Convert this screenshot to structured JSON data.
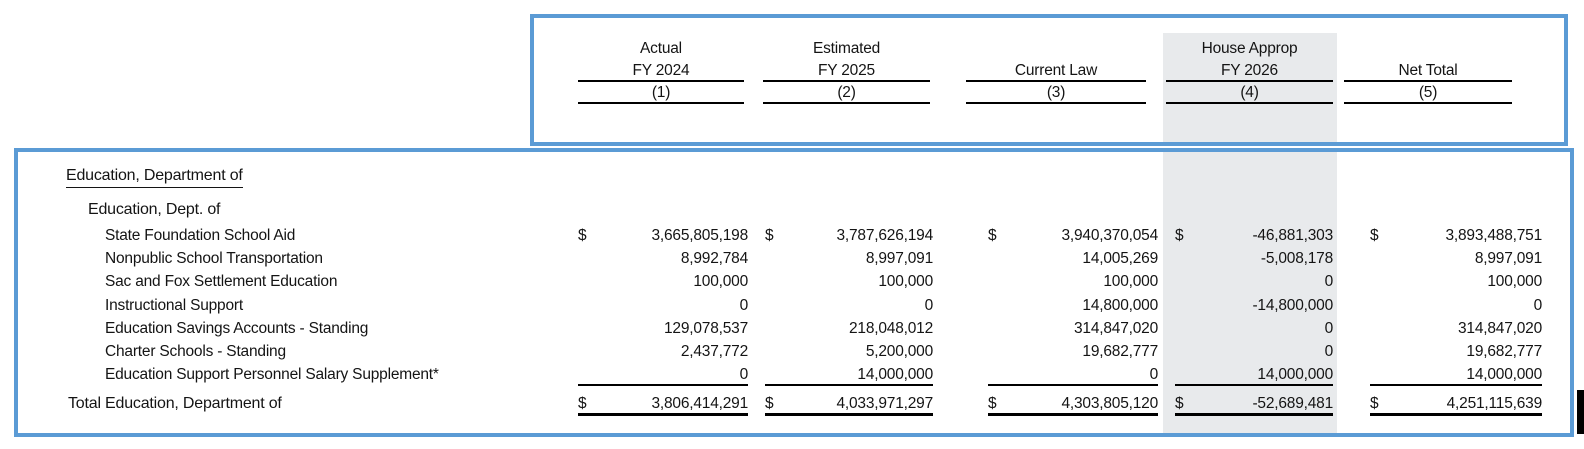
{
  "colors": {
    "box_border": "#5B9BD5",
    "highlight_band": "#E8EAEC",
    "rule": "#000000",
    "text": "#141414"
  },
  "header": {
    "columns": [
      {
        "line1": "Actual",
        "line2": "FY 2024",
        "number": "(1)"
      },
      {
        "line1": "Estimated",
        "line2": "FY 2025",
        "number": "(2)"
      },
      {
        "line1": "",
        "line2": "Current Law",
        "number": "(3)"
      },
      {
        "line1": "House Approp",
        "line2": "FY 2026",
        "number": "(4)"
      },
      {
        "line1": "",
        "line2": "Net Total",
        "number": "(5)"
      }
    ]
  },
  "table": {
    "section_title": "Education, Department of",
    "group_title": "Education, Dept. of",
    "rows": [
      {
        "label": "State Foundation School Aid",
        "dollars": [
          "$",
          "$",
          "$",
          "$",
          "$"
        ],
        "values": [
          "3,665,805,198",
          "3,787,626,194",
          "3,940,370,054",
          "-46,881,303",
          "3,893,488,751"
        ]
      },
      {
        "label": "Nonpublic School Transportation",
        "values": [
          "8,992,784",
          "8,997,091",
          "14,005,269",
          "-5,008,178",
          "8,997,091"
        ]
      },
      {
        "label": "Sac and Fox Settlement Education",
        "values": [
          "100,000",
          "100,000",
          "100,000",
          "0",
          "100,000"
        ]
      },
      {
        "label": "Instructional Support",
        "values": [
          "0",
          "0",
          "14,800,000",
          "-14,800,000",
          "0"
        ]
      },
      {
        "label": "Education Savings Accounts - Standing",
        "values": [
          "129,078,537",
          "218,048,012",
          "314,847,020",
          "0",
          "314,847,020"
        ]
      },
      {
        "label": "Charter Schools - Standing",
        "values": [
          "2,437,772",
          "5,200,000",
          "19,682,777",
          "0",
          "19,682,777"
        ]
      },
      {
        "label": "Education Support Personnel Salary Supplement*",
        "values": [
          "0",
          "14,000,000",
          "0",
          "14,000,000",
          "14,000,000"
        ]
      }
    ],
    "total_row": {
      "label": "Total Education, Department of",
      "dollars": [
        "$",
        "$",
        "$",
        "$",
        "$"
      ],
      "values": [
        "3,806,414,291",
        "4,033,971,297",
        "4,303,805,120",
        "-52,689,481",
        "4,251,115,639"
      ]
    }
  }
}
